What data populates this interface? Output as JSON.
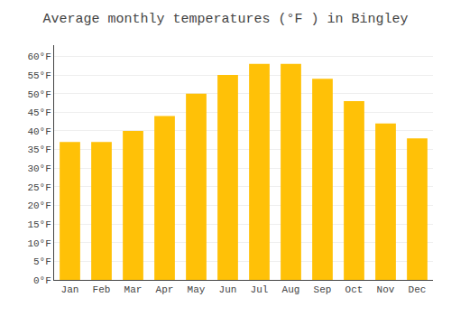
{
  "chart_data": {
    "type": "bar",
    "title": "Average monthly temperatures (°F ) in Bingley",
    "categories": [
      "Jan",
      "Feb",
      "Mar",
      "Apr",
      "May",
      "Jun",
      "Jul",
      "Aug",
      "Sep",
      "Oct",
      "Nov",
      "Dec"
    ],
    "values": [
      37,
      37,
      40,
      44,
      50,
      55,
      58,
      58,
      54,
      48,
      42,
      38
    ],
    "color": "#FFC107",
    "ylim": [
      0,
      63
    ],
    "yticks": [
      {
        "value": 0,
        "label": "0°F"
      },
      {
        "value": 5,
        "label": "5°F"
      },
      {
        "value": 10,
        "label": "10°F"
      },
      {
        "value": 15,
        "label": "15°F"
      },
      {
        "value": 20,
        "label": "20°F"
      },
      {
        "value": 25,
        "label": "25°F"
      },
      {
        "value": 30,
        "label": "30°F"
      },
      {
        "value": 35,
        "label": "35°F"
      },
      {
        "value": 40,
        "label": "40°F"
      },
      {
        "value": 45,
        "label": "45°F"
      },
      {
        "value": 50,
        "label": "50°F"
      },
      {
        "value": 55,
        "label": "55°F"
      },
      {
        "value": 60,
        "label": "60°F"
      }
    ],
    "grid": true
  }
}
